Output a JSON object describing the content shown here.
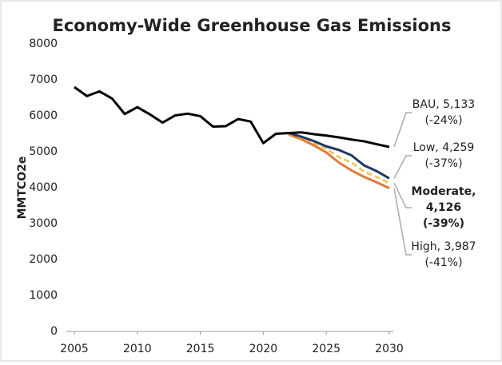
{
  "chart_data": {
    "type": "line",
    "title": "Economy-Wide Greenhouse Gas Emissions",
    "y_label": "MMTCO2e",
    "x": [
      2005,
      2006,
      2007,
      2008,
      2009,
      2010,
      2011,
      2012,
      2013,
      2014,
      2015,
      2016,
      2017,
      2018,
      2019,
      2020,
      2021,
      2022,
      2023,
      2024,
      2025,
      2026,
      2027,
      2028,
      2029,
      2030
    ],
    "series": [
      {
        "name": "BAU",
        "color": "#000000",
        "dash": false,
        "values": [
          6800,
          6550,
          6680,
          6480,
          6050,
          6240,
          6040,
          5810,
          6010,
          6060,
          5990,
          5700,
          5710,
          5910,
          5840,
          5240,
          5500,
          5520,
          5540,
          5490,
          5450,
          5400,
          5340,
          5290,
          5210,
          5133
        ],
        "annotation": [
          "BAU, 5,133",
          "(-24%)"
        ],
        "bold": false
      },
      {
        "name": "Low",
        "color": "#1f3864",
        "dash": false,
        "values": [
          null,
          null,
          null,
          null,
          null,
          null,
          null,
          null,
          null,
          null,
          null,
          null,
          null,
          null,
          null,
          null,
          null,
          5520,
          5420,
          5300,
          5150,
          5050,
          4900,
          4620,
          4460,
          4259
        ],
        "annotation": [
          "Low, 4,259",
          "(-37%)"
        ],
        "bold": false
      },
      {
        "name": "Moderate",
        "color": "#f2c14e",
        "dash": true,
        "values": [
          null,
          null,
          null,
          null,
          null,
          null,
          null,
          null,
          null,
          null,
          null,
          null,
          null,
          null,
          null,
          null,
          null,
          5500,
          5390,
          5250,
          5080,
          4850,
          4700,
          4450,
          4300,
          4126
        ],
        "annotation": [
          "Moderate,",
          "4,126",
          "(-39%)"
        ],
        "bold": true
      },
      {
        "name": "High",
        "color": "#e07b39",
        "dash": false,
        "values": [
          null,
          null,
          null,
          null,
          null,
          null,
          null,
          null,
          null,
          null,
          null,
          null,
          null,
          null,
          null,
          null,
          null,
          5480,
          5350,
          5180,
          4980,
          4700,
          4480,
          4300,
          4150,
          3987
        ],
        "annotation": [
          "High, 3,987",
          "(-41%)"
        ],
        "bold": false
      }
    ],
    "xlim": [
      2005,
      2030
    ],
    "xticks": [
      2005,
      2010,
      2015,
      2020,
      2025,
      2030
    ],
    "ylim": [
      0,
      8000
    ],
    "yticks": [
      0,
      1000,
      2000,
      3000,
      4000,
      5000,
      6000,
      7000,
      8000
    ],
    "grid": false
  }
}
